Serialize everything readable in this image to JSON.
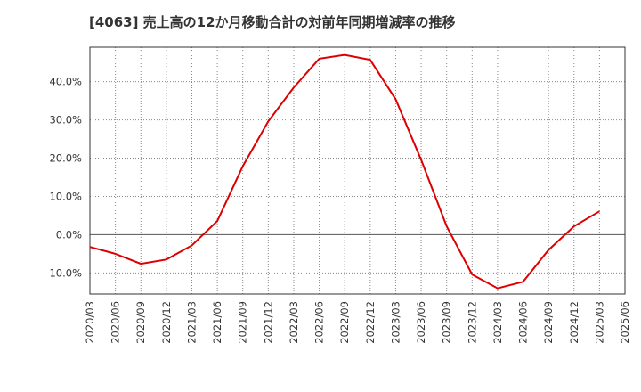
{
  "chart_data": {
    "type": "line",
    "title": "[4063]  売上高の12か月移動合計の対前年同期増減率の推移",
    "xlabel": "",
    "ylabel": "",
    "ylim": [
      -15.5,
      49
    ],
    "yticks": [
      -10,
      0,
      10,
      20,
      30,
      40
    ],
    "ytick_labels": [
      "-10.0%",
      "0.0%",
      "10.0%",
      "20.0%",
      "30.0%",
      "40.0%"
    ],
    "grid": true,
    "categories": [
      "2020/03",
      "2020/06",
      "2020/09",
      "2020/12",
      "2021/03",
      "2021/06",
      "2021/09",
      "2021/12",
      "2022/03",
      "2022/06",
      "2022/09",
      "2022/12",
      "2023/03",
      "2023/06",
      "2023/09",
      "2023/12",
      "2024/03",
      "2024/06",
      "2024/09",
      "2024/12",
      "2025/03",
      "2025/06"
    ],
    "series": [
      {
        "name": "売上高の12か月移動合計の対前年同期増減率",
        "color": "#dd0000",
        "values": [
          -3.2,
          -5.0,
          -7.6,
          -6.5,
          -2.8,
          3.6,
          17.9,
          29.6,
          38.5,
          46.0,
          47.0,
          45.7,
          35.4,
          19.6,
          2.2,
          -10.4,
          -14.0,
          -12.3,
          -4.0,
          2.2,
          6.1,
          null
        ]
      }
    ]
  }
}
